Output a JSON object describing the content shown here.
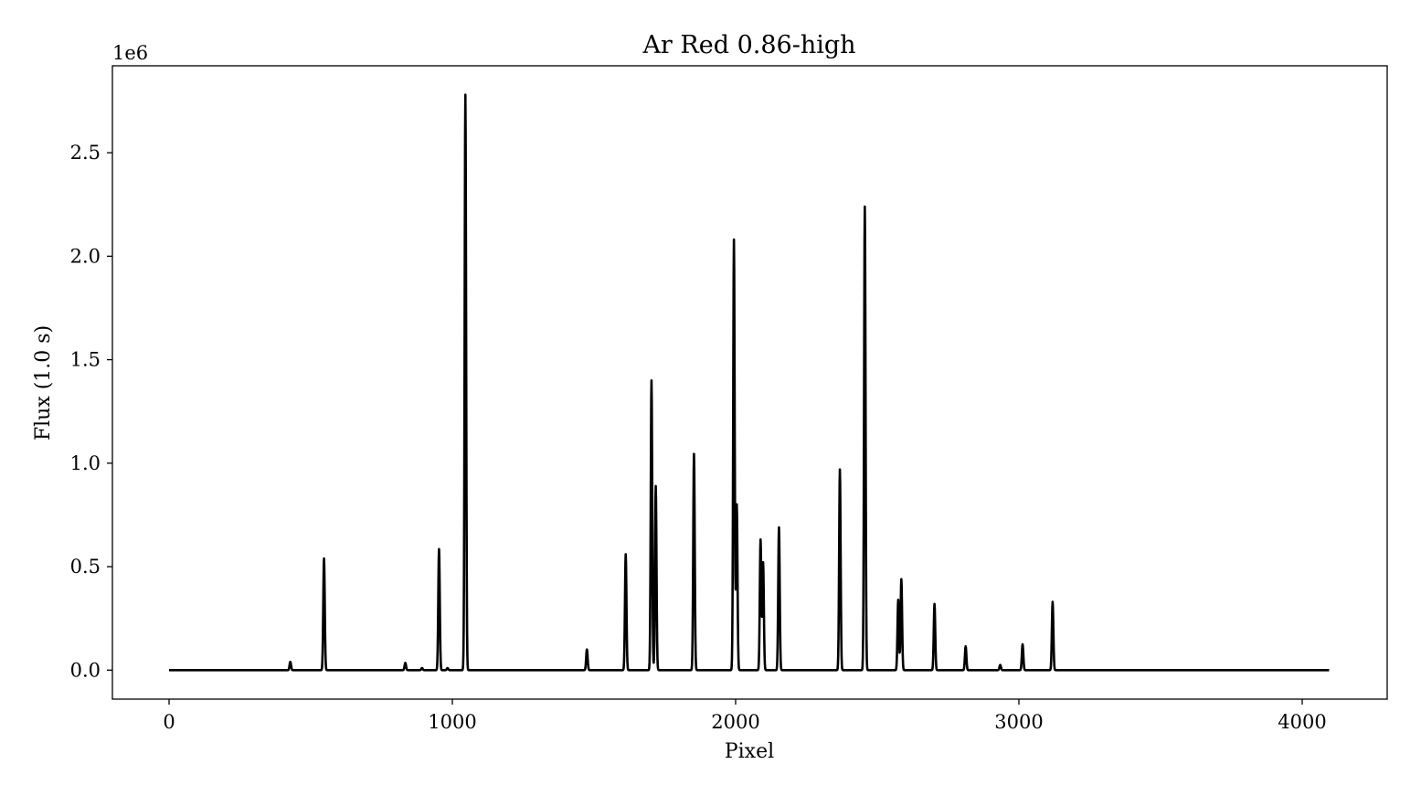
{
  "chart_data": {
    "type": "line",
    "title": "Ar Red 0.86-high",
    "xlabel": "Pixel",
    "ylabel": "Flux (1.0 s)",
    "y_offset_label": "1e6",
    "xlim": [
      -200,
      4300
    ],
    "ylim": [
      -0.14,
      2.92
    ],
    "x_range": [
      0,
      4095
    ],
    "grid": false,
    "x_ticks": [
      0,
      1000,
      2000,
      3000,
      4000
    ],
    "x_tick_labels": [
      "0",
      "1000",
      "2000",
      "3000",
      "4000"
    ],
    "y_ticks": [
      0.0,
      0.5,
      1.0,
      1.5,
      2.0,
      2.5
    ],
    "y_tick_labels": [
      "0.0",
      "0.5",
      "1.0",
      "1.5",
      "2.0",
      "2.5"
    ],
    "line_color": "#000000",
    "series": [
      {
        "baseline": 0.0,
        "peaks": [
          {
            "x": 428,
            "y": 0.04
          },
          {
            "x": 547,
            "y": 0.54
          },
          {
            "x": 834,
            "y": 0.035
          },
          {
            "x": 893,
            "y": 0.01
          },
          {
            "x": 953,
            "y": 0.585
          },
          {
            "x": 983,
            "y": 0.01
          },
          {
            "x": 1046,
            "y": 2.78
          },
          {
            "x": 1475,
            "y": 0.1
          },
          {
            "x": 1612,
            "y": 0.56
          },
          {
            "x": 1703,
            "y": 1.4
          },
          {
            "x": 1718,
            "y": 0.89
          },
          {
            "x": 1853,
            "y": 1.045
          },
          {
            "x": 1994,
            "y": 2.08
          },
          {
            "x": 2004,
            "y": 0.8
          },
          {
            "x": 2088,
            "y": 0.63
          },
          {
            "x": 2097,
            "y": 0.52
          },
          {
            "x": 2153,
            "y": 0.69
          },
          {
            "x": 2368,
            "y": 0.97
          },
          {
            "x": 2456,
            "y": 2.24
          },
          {
            "x": 2574,
            "y": 0.34
          },
          {
            "x": 2585,
            "y": 0.44
          },
          {
            "x": 2702,
            "y": 0.32
          },
          {
            "x": 2812,
            "y": 0.115
          },
          {
            "x": 2934,
            "y": 0.025
          },
          {
            "x": 3013,
            "y": 0.125
          },
          {
            "x": 3119,
            "y": 0.33
          }
        ]
      }
    ]
  }
}
